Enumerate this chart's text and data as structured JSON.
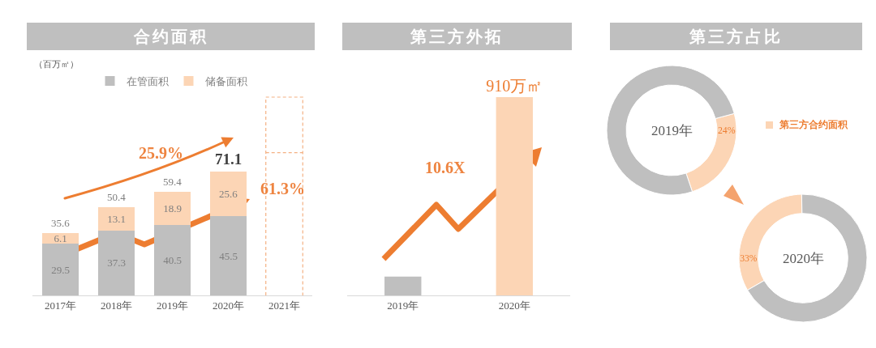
{
  "chart_data": [
    {
      "type": "bar",
      "title": "合约面积",
      "categories": [
        "2017年",
        "2018年",
        "2019年",
        "2020年",
        "2021年"
      ],
      "stacked": true,
      "data_labels": true,
      "legend": "top",
      "tick_labels": "x",
      "series": [
        {
          "name": "在管面积",
          "color": "#bfbfbf",
          "values": [
            29.5,
            37.3,
            40.5,
            45.5,
            null
          ]
        },
        {
          "name": "储备面积",
          "color": "#fcd5b5",
          "values": [
            6.1,
            13.1,
            18.9,
            25.6,
            null
          ]
        }
      ],
      "totals": [
        "35.6",
        "50.4",
        "59.4",
        "71.1",
        null
      ],
      "annotations": [
        "（百万㎡）",
        "25.9%",
        "61.3%"
      ]
    },
    {
      "type": "bar",
      "title": "第三方外拓",
      "categories": [
        "2019年",
        "2020年"
      ],
      "values": [
        86,
        910
      ],
      "colors": [
        "#bfbfbf",
        "#fcd5b5"
      ],
      "value_labels": [
        null,
        "910万㎡"
      ],
      "tick_labels": "x",
      "annotations": [
        "10.6X"
      ]
    },
    {
      "type": "donut",
      "title": "第三方占比",
      "categories": [
        "第三方合约面积",
        null
      ],
      "values": [
        24,
        76
      ],
      "colors": [
        "#fcd5b5",
        "#bfbfbf"
      ],
      "value_labels": [
        "24%",
        null
      ],
      "legend": "right",
      "annotations": [
        "2019年"
      ]
    },
    {
      "type": "donut",
      "categories": [
        null,
        null
      ],
      "values": [
        33,
        67
      ],
      "colors": [
        "#fcd5b5",
        "#bfbfbf"
      ],
      "value_labels": [
        "33%",
        null
      ],
      "annotations": [
        "2020年"
      ]
    }
  ]
}
